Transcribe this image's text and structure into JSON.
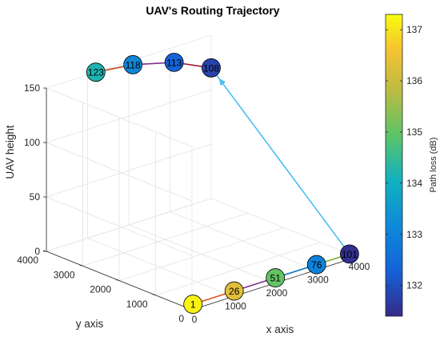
{
  "chart_data": {
    "type": "scatter",
    "title": "UAV's Routing Trajectory",
    "xlabel": "x axis",
    "ylabel": "y axis",
    "zlabel": "UAV height",
    "xlim": [
      0,
      4000
    ],
    "ylim": [
      0,
      4000
    ],
    "zlim": [
      0,
      150
    ],
    "x_ticks": [
      "0",
      "1000",
      "2000",
      "3000",
      "4000"
    ],
    "y_ticks": [
      "0",
      "1000",
      "2000",
      "3000",
      "4000"
    ],
    "z_ticks": [
      "0",
      "50",
      "100",
      "150"
    ],
    "grid": true,
    "colorbar": {
      "label": "Path loss (dB)",
      "ticks": [
        "132",
        "133",
        "134",
        "135",
        "136",
        "137"
      ],
      "range": [
        131.4,
        137.3
      ],
      "colormap": "parula"
    },
    "points": [
      {
        "label": "1",
        "x": 200,
        "y": 200,
        "z": 0,
        "path_loss": 137.2
      },
      {
        "label": "26",
        "x": 1200,
        "y": 200,
        "z": 0,
        "path_loss": 136.3
      },
      {
        "label": "51",
        "x": 2200,
        "y": 200,
        "z": 0,
        "path_loss": 135.0
      },
      {
        "label": "76",
        "x": 3200,
        "y": 200,
        "z": 0,
        "path_loss": 133.0
      },
      {
        "label": "101",
        "x": 4000,
        "y": 200,
        "z": 0,
        "path_loss": 131.5
      },
      {
        "label": "108",
        "x": 4000,
        "y": 4000,
        "z": 120,
        "path_loss": 131.8
      },
      {
        "label": "113",
        "x": 3100,
        "y": 4000,
        "z": 136,
        "path_loss": 132.3
      },
      {
        "label": "118",
        "x": 2100,
        "y": 4000,
        "z": 146,
        "path_loss": 133.1
      },
      {
        "label": "123",
        "x": 1200,
        "y": 4000,
        "z": 150,
        "path_loss": 134.2
      }
    ],
    "segments": [
      {
        "from": 0,
        "to": 1,
        "color": "#D95319"
      },
      {
        "from": 1,
        "to": 2,
        "color": "#7E2F8E"
      },
      {
        "from": 2,
        "to": 3,
        "color": "#0072BD"
      },
      {
        "from": 3,
        "to": 4,
        "color": "#77AC30"
      },
      {
        "from": 4,
        "to": 5,
        "color": "#4DBEEE",
        "arrow": true
      },
      {
        "from": 5,
        "to": 6,
        "color": "#A2142F"
      },
      {
        "from": 6,
        "to": 7,
        "color": "#7E2F8E"
      },
      {
        "from": 7,
        "to": 8,
        "color": "#0072BD"
      },
      {
        "from": 8,
        "to": 7,
        "color": "#D95319",
        "draw_only_first_half": true
      }
    ]
  }
}
